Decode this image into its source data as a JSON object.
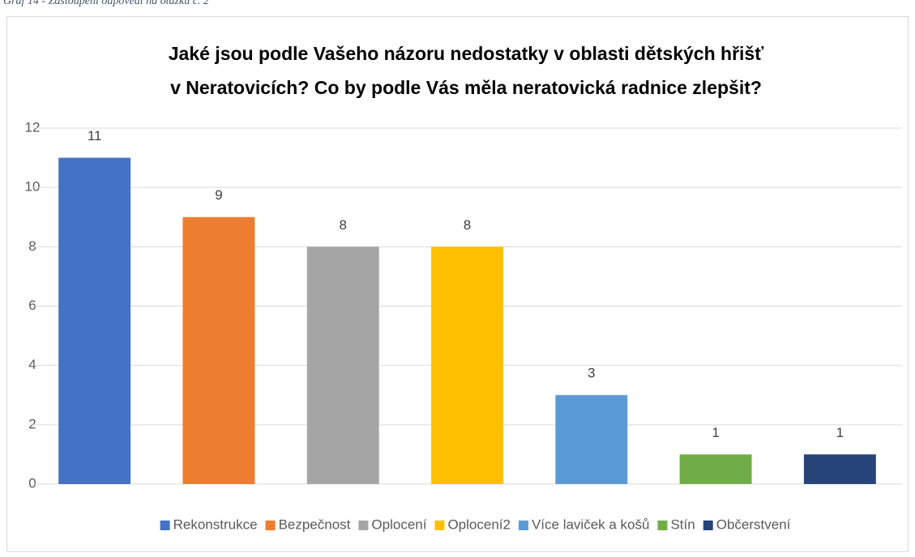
{
  "chart_data": {
    "type": "bar",
    "caption": "Graf 14 - Zastoupení odpovědí na otázku č. 2",
    "title": [
      "Jaké jsou podle Vašeho názoru nedostatky v oblasti dětských hřišť",
      "v Neratovicích? Co by podle Vás měla neratovická radnice zlepšit?"
    ],
    "series": [
      {
        "name": "Rekonstrukce",
        "color": "#4472c4",
        "values": [
          11
        ]
      },
      {
        "name": "Bezpečnost",
        "color": "#ed7d31",
        "values": [
          9
        ]
      },
      {
        "name": "Oplocení",
        "color": "#a5a5a5",
        "values": [
          8
        ]
      },
      {
        "name": "Oplocení2",
        "color": "#ffc000",
        "values": [
          8
        ]
      },
      {
        "name": "Více laviček a košů",
        "color": "#5b9bd5",
        "values": [
          3
        ]
      },
      {
        "name": "Stín",
        "color": "#70ad47",
        "values": [
          1
        ]
      },
      {
        "name": "Občerstvení",
        "color": "#264478",
        "values": [
          1
        ]
      }
    ],
    "ylim": [
      0,
      12
    ],
    "yticks": [
      0,
      2,
      4,
      6,
      8,
      10,
      12
    ],
    "grid": true,
    "legend": "bottom",
    "data_labels": true
  }
}
